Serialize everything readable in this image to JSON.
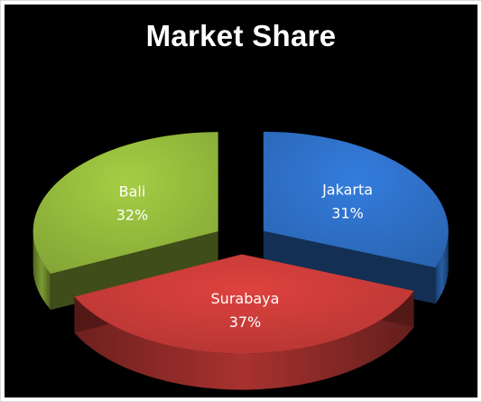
{
  "chart_data": {
    "type": "pie",
    "title": "Market Share",
    "style": "3d-exploded",
    "background": "#000000",
    "slices": [
      {
        "label": "Jakarta",
        "value": 31,
        "percent_label": "31%",
        "color": "#2e6fc5"
      },
      {
        "label": "Surabaya",
        "value": 37,
        "percent_label": "37%",
        "color": "#c63b37"
      },
      {
        "label": "Bali",
        "value": 32,
        "percent_label": "32%",
        "color": "#93b83c"
      }
    ]
  }
}
